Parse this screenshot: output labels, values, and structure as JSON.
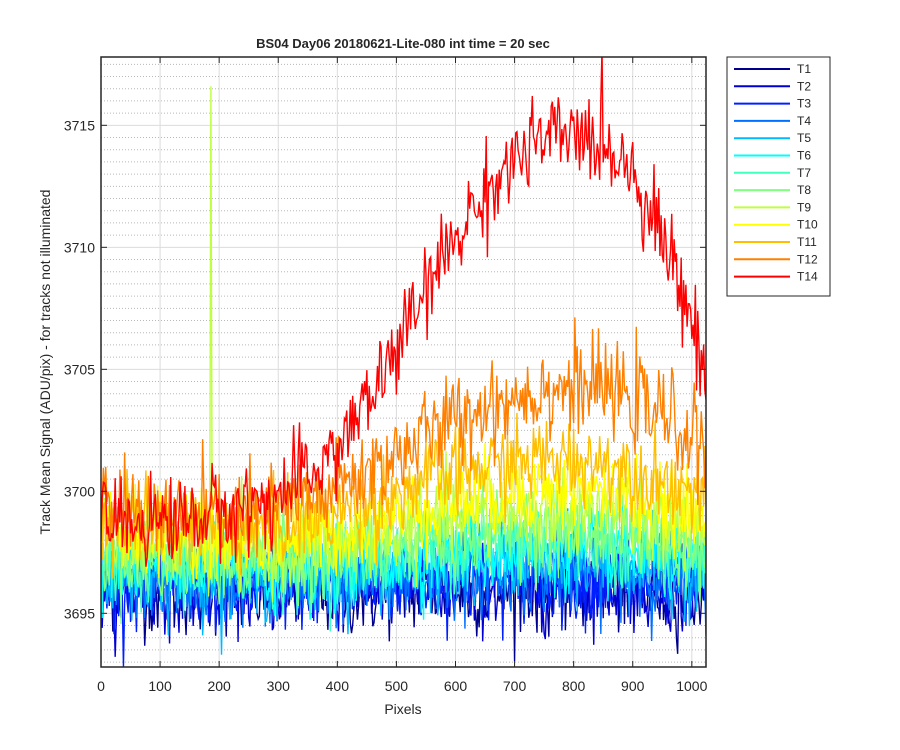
{
  "chart_data": {
    "type": "line",
    "title": "BS04 Day06 20180621-Lite-080 int time = 20 sec",
    "xlabel": "Pixels",
    "ylabel": "Track Mean Signal (ADU/pix) - for tracks not illuminated",
    "xlim": [
      0,
      1024
    ],
    "ylim": [
      3692.8,
      3717.8
    ],
    "xticks": [
      0,
      100,
      200,
      300,
      400,
      500,
      600,
      700,
      800,
      900,
      1000
    ],
    "yticks": [
      3695,
      3700,
      3705,
      3710,
      3715
    ],
    "grid": "on (major + minor dotted)",
    "legend_position": "outside-top-right",
    "x": [
      0,
      50,
      100,
      150,
      200,
      250,
      300,
      350,
      400,
      450,
      500,
      550,
      600,
      650,
      700,
      750,
      800,
      850,
      900,
      950,
      1000,
      1024
    ],
    "series": [
      {
        "name": "T1",
        "color": "#00008f",
        "values": [
          3696.0,
          3696.0,
          3695.8,
          3695.8,
          3695.8,
          3695.8,
          3695.8,
          3695.8,
          3695.8,
          3695.8,
          3695.8,
          3695.9,
          3695.9,
          3695.9,
          3696.0,
          3696.0,
          3696.0,
          3696.0,
          3695.9,
          3695.8,
          3695.8,
          3695.7
        ]
      },
      {
        "name": "T2",
        "color": "#0000d5",
        "values": [
          3696.1,
          3696.1,
          3696.0,
          3696.0,
          3696.0,
          3696.0,
          3696.0,
          3696.0,
          3696.0,
          3696.0,
          3696.0,
          3696.1,
          3696.1,
          3696.1,
          3696.1,
          3696.1,
          3696.2,
          3696.1,
          3696.1,
          3696.0,
          3696.0,
          3695.9
        ]
      },
      {
        "name": "T3",
        "color": "#0020ff",
        "values": [
          3696.2,
          3696.2,
          3696.2,
          3696.2,
          3696.1,
          3696.1,
          3696.1,
          3696.1,
          3696.2,
          3696.2,
          3696.2,
          3696.3,
          3696.3,
          3696.3,
          3696.4,
          3696.4,
          3696.4,
          3696.4,
          3696.3,
          3696.2,
          3696.1,
          3696.0
        ]
      },
      {
        "name": "T4",
        "color": "#0070ff",
        "values": [
          3696.4,
          3696.4,
          3696.3,
          3696.3,
          3696.3,
          3696.3,
          3696.3,
          3696.3,
          3696.3,
          3696.4,
          3696.5,
          3696.5,
          3696.6,
          3696.6,
          3696.7,
          3696.7,
          3696.7,
          3696.7,
          3696.6,
          3696.5,
          3696.4,
          3696.3
        ]
      },
      {
        "name": "T5",
        "color": "#00b9ff",
        "values": [
          3696.7,
          3696.6,
          3696.5,
          3696.5,
          3696.5,
          3696.5,
          3696.5,
          3696.5,
          3696.6,
          3696.7,
          3696.8,
          3696.9,
          3697.0,
          3697.0,
          3697.1,
          3697.1,
          3697.1,
          3697.1,
          3697.0,
          3696.9,
          3696.7,
          3696.6
        ]
      },
      {
        "name": "T6",
        "color": "#00ffff",
        "values": [
          3697.0,
          3696.9,
          3696.8,
          3696.8,
          3696.8,
          3696.8,
          3696.8,
          3696.8,
          3696.9,
          3697.0,
          3697.2,
          3697.3,
          3697.4,
          3697.5,
          3697.5,
          3697.6,
          3697.6,
          3697.5,
          3697.4,
          3697.2,
          3697.0,
          3696.9
        ]
      },
      {
        "name": "T7",
        "color": "#40ffbf",
        "values": [
          3697.2,
          3697.1,
          3697.0,
          3697.0,
          3697.0,
          3697.0,
          3697.0,
          3697.0,
          3697.1,
          3697.3,
          3697.5,
          3697.7,
          3697.8,
          3697.9,
          3698.0,
          3698.0,
          3698.0,
          3698.0,
          3697.8,
          3697.6,
          3697.3,
          3697.2
        ]
      },
      {
        "name": "T8",
        "color": "#80ff80",
        "values": [
          3697.5,
          3697.4,
          3697.2,
          3697.2,
          3697.2,
          3697.2,
          3697.2,
          3697.3,
          3697.4,
          3697.6,
          3697.9,
          3698.1,
          3698.3,
          3698.4,
          3698.5,
          3698.5,
          3698.5,
          3698.4,
          3698.3,
          3698.0,
          3697.7,
          3697.5
        ]
      },
      {
        "name": "T9",
        "color": "#bfff40",
        "values": [
          3698.0,
          3697.8,
          3697.7,
          3697.6,
          3697.6,
          3697.6,
          3697.6,
          3697.7,
          3697.8,
          3698.1,
          3698.4,
          3698.7,
          3698.9,
          3699.0,
          3699.1,
          3699.2,
          3699.2,
          3699.1,
          3698.9,
          3698.6,
          3698.2,
          3698.0
        ]
      },
      {
        "name": "T10",
        "color": "#ffff00",
        "values": [
          3698.5,
          3698.3,
          3698.2,
          3698.1,
          3698.1,
          3698.1,
          3698.1,
          3698.2,
          3698.4,
          3698.7,
          3699.0,
          3699.4,
          3699.6,
          3699.8,
          3700.0,
          3700.1,
          3700.1,
          3700.0,
          3699.8,
          3699.4,
          3699.0,
          3698.7
        ]
      },
      {
        "name": "T11",
        "color": "#ffbf00",
        "values": [
          3699.0,
          3698.8,
          3698.7,
          3698.6,
          3698.6,
          3698.6,
          3698.7,
          3698.8,
          3699.1,
          3699.5,
          3699.9,
          3700.4,
          3700.7,
          3701.0,
          3701.2,
          3701.3,
          3701.3,
          3701.2,
          3700.9,
          3700.5,
          3700.0,
          3699.6
        ]
      },
      {
        "name": "T12",
        "color": "#ff8000",
        "values": [
          3699.4,
          3699.2,
          3699.1,
          3699.0,
          3699.0,
          3699.1,
          3699.3,
          3699.6,
          3700.1,
          3700.8,
          3701.5,
          3702.3,
          3702.9,
          3703.5,
          3703.9,
          3704.2,
          3704.3,
          3704.2,
          3703.8,
          3703.1,
          3702.3,
          3701.8
        ]
      },
      {
        "name": "T14",
        "color": "#ff0000",
        "values": [
          3698.6,
          3698.8,
          3698.8,
          3698.9,
          3699.1,
          3699.4,
          3699.8,
          3700.6,
          3701.8,
          3703.6,
          3705.8,
          3708.2,
          3710.4,
          3712.2,
          3713.6,
          3714.4,
          3714.6,
          3714.3,
          3713.2,
          3710.5,
          3707.0,
          3704.5
        ]
      }
    ],
    "annotations": [
      {
        "series": "T9",
        "x": 186,
        "y_peak": 3716.6,
        "note": "single-pixel spike"
      }
    ]
  }
}
